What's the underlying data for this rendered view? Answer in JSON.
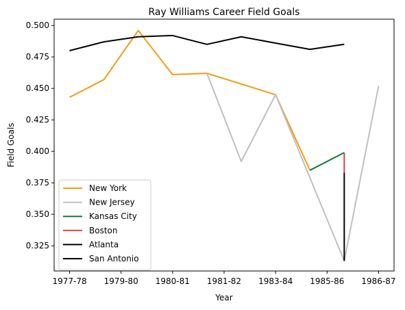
{
  "chart_data": {
    "type": "line",
    "title": "Ray Williams  Career Field Goals",
    "xlabel": "Year",
    "ylabel": "Field Goals",
    "x_ticks": [
      {
        "x": 0,
        "label": "1977-78"
      },
      {
        "x": 1.5,
        "label": "1979-80"
      },
      {
        "x": 3,
        "label": "1980-81"
      },
      {
        "x": 4.5,
        "label": "1981-82"
      },
      {
        "x": 6,
        "label": "1983-84"
      },
      {
        "x": 7.5,
        "label": "1985-86"
      },
      {
        "x": 9,
        "label": "1986-87"
      }
    ],
    "xlim": [
      -0.45,
      9.45
    ],
    "ylim": [
      0.305,
      0.505
    ],
    "y_ticks": [
      0.325,
      0.35,
      0.375,
      0.4,
      0.425,
      0.45,
      0.475,
      0.5
    ],
    "y_tick_labels": [
      "0.325",
      "0.350",
      "0.375",
      "0.400",
      "0.425",
      "0.450",
      "0.475",
      "0.500"
    ],
    "legend_position": "lower-left",
    "grid": false,
    "series": [
      {
        "name": "New York",
        "color": "#f39c12",
        "x": [
          0,
          1,
          2,
          3,
          4,
          6,
          7
        ],
        "y": [
          0.443,
          0.457,
          0.496,
          0.461,
          0.462,
          0.445,
          0.385
        ]
      },
      {
        "name": "New Jersey",
        "color": "#bfbfbf",
        "x": [
          4,
          5,
          6,
          8,
          9
        ],
        "y": [
          0.462,
          0.392,
          0.445,
          0.313,
          0.452
        ]
      },
      {
        "name": "Kansas City",
        "color": "#0b7b35",
        "x": [
          7,
          8
        ],
        "y": [
          0.385,
          0.399
        ]
      },
      {
        "name": "Boston",
        "color": "#d9413c",
        "x": [
          8,
          8
        ],
        "y": [
          0.399,
          0.383
        ]
      },
      {
        "name": "Atlanta",
        "color": "#000000",
        "x": [
          8,
          8
        ],
        "y": [
          0.383,
          0.313
        ]
      },
      {
        "name": "San Antonio",
        "color": "#000000",
        "x": [
          0,
          1,
          2,
          3,
          4,
          5,
          6,
          7,
          8
        ],
        "y": [
          0.48,
          0.487,
          0.491,
          0.492,
          0.485,
          0.491,
          0.486,
          0.481,
          0.485
        ]
      }
    ]
  }
}
